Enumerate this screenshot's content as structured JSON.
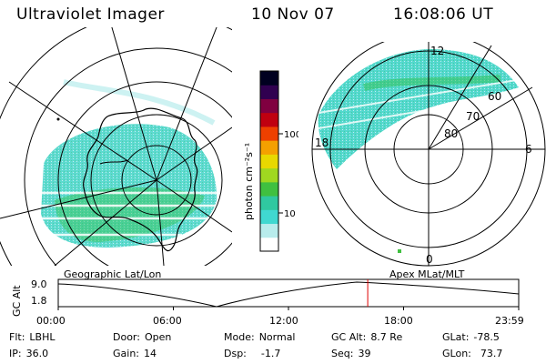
{
  "header": {
    "instrument": "Ultraviolet Imager",
    "date": "10 Nov 07",
    "time": "16:08:06 UT"
  },
  "left_panel": {
    "caption": "Geographic Lat/Lon"
  },
  "right_panel": {
    "caption": "Apex  MLat/MLT",
    "mlt_labels": {
      "top": "12",
      "bottom": "0",
      "left": "18",
      "right": "6"
    },
    "lat_labels": [
      "60",
      "70",
      "80"
    ]
  },
  "colorbar": {
    "unit_label": "photon cm⁻²s⁻¹",
    "ticks": [
      "100",
      "10"
    ],
    "colors": [
      "#ffffff",
      "#b8ecec",
      "#40d8d0",
      "#30c8a0",
      "#40c040",
      "#a0d820",
      "#e8d800",
      "#f4a000",
      "#ee4000",
      "#c00010",
      "#800040",
      "#300050",
      "#000020"
    ]
  },
  "altitude_plot": {
    "ylabel": "GC Alt",
    "yticks": [
      "9.0",
      "1.8"
    ],
    "xticks": [
      "00:00",
      "06:00",
      "12:00",
      "18:00",
      "23:59"
    ],
    "marker_hour": 16.13,
    "marker_color": "#e00000"
  },
  "status": {
    "flt_label": "Flt:",
    "flt_value": "LBHL",
    "ip_label": "IP:",
    "ip_value": "36.0",
    "door_label": "Door:",
    "door_value": "Open",
    "gain_label": "Gain:",
    "gain_value": "14",
    "mode_label": "Mode:",
    "mode_value": "Normal",
    "dsp_label": "Dsp:",
    "dsp_value": "-1.7",
    "gcalt_label": "GC Alt:",
    "gcalt_value": "8.7 Re",
    "seq_label": "Seq:",
    "seq_value": "39",
    "glat_label": "GLat:",
    "glat_value": "-78.5",
    "glon_label": "GLon:",
    "glon_value": "73.7"
  }
}
